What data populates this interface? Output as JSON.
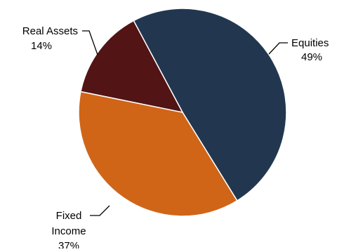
{
  "chart_data": {
    "type": "pie",
    "title": "",
    "slices": [
      {
        "label": "Equities",
        "value": 49,
        "value_label": "49%",
        "color": "#22374f"
      },
      {
        "label": "Fixed Income",
        "value": 37,
        "value_label": "37%",
        "color": "#d06518"
      },
      {
        "label": "Real Assets",
        "value": 14,
        "value_label": "14%",
        "color": "#521414"
      }
    ],
    "legend": "none",
    "labels": "outside with leader lines"
  }
}
